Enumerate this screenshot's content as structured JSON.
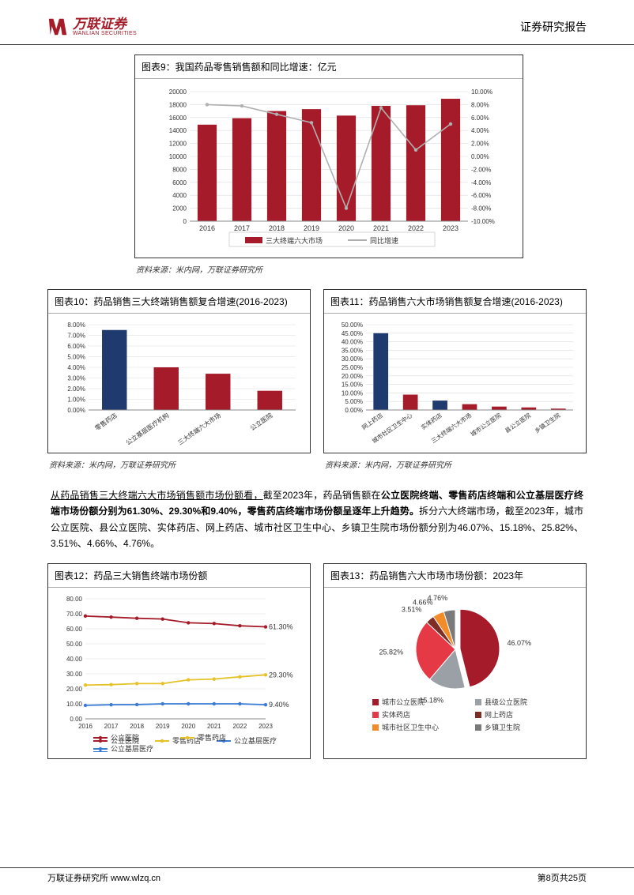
{
  "header": {
    "logo_cn": "万联证券",
    "logo_en": "WANLIAN SECURITIES",
    "right": "证券研究报告"
  },
  "chart9": {
    "title": "图表9：我国药品零售销售额和同比增速：亿元",
    "type": "bar+line",
    "categories": [
      "2016",
      "2017",
      "2018",
      "2019",
      "2020",
      "2021",
      "2022",
      "2023"
    ],
    "bar_values": [
      14900,
      15900,
      17000,
      17300,
      16300,
      17800,
      17900,
      18900
    ],
    "line_values": [
      8.0,
      7.8,
      6.5,
      5.2,
      -8.0,
      7.5,
      1.0,
      5.0
    ],
    "y1_ticks": [
      0,
      2000,
      4000,
      6000,
      8000,
      10000,
      12000,
      14000,
      16000,
      18000,
      20000
    ],
    "y2_ticks": [
      -10,
      -8,
      -6,
      -4,
      -2,
      0,
      2,
      4,
      6,
      8,
      10
    ],
    "y1_max": 20000,
    "y2_min": -10,
    "y2_max": 10,
    "bar_color": "#a61b29",
    "line_color": "#b0b0b0",
    "legend": [
      {
        "label": "三大终端六大市场",
        "type": "bar",
        "color": "#a61b29"
      },
      {
        "label": "同比增速",
        "type": "line",
        "color": "#b0b0b0"
      }
    ],
    "source": "资料来源：米内网，万联证券研究所"
  },
  "chart10": {
    "title": "图表10：药品销售三大终端销售额复合增速(2016-2023)",
    "type": "bar",
    "categories": [
      "零售药店",
      "公立基层医疗机构",
      "三大终端六大市场",
      "公立医院"
    ],
    "values": [
      7.5,
      4.0,
      3.4,
      1.8
    ],
    "colors": [
      "#1f3a6e",
      "#a61b29",
      "#a61b29",
      "#a61b29"
    ],
    "y_ticks": [
      0,
      1,
      2,
      3,
      4,
      5,
      6,
      7,
      8
    ],
    "y_max": 8,
    "source": "资料来源：米内网，万联证券研究所"
  },
  "chart11": {
    "title": "图表11：药品销售六大市场销售额复合增速(2016-2023)",
    "type": "bar",
    "categories": [
      "网上药店",
      "城市社区卫生中心",
      "实体药店",
      "三大终端六大市场",
      "城市公立医院",
      "县公立医院",
      "乡镇卫生院"
    ],
    "values": [
      45.0,
      9.0,
      5.5,
      3.4,
      2.0,
      1.5,
      0.8
    ],
    "colors": [
      "#1f3a6e",
      "#a61b29",
      "#1f3a6e",
      "#a61b29",
      "#a61b29",
      "#a61b29",
      "#a61b29"
    ],
    "y_ticks": [
      0,
      5,
      10,
      15,
      20,
      25,
      30,
      35,
      40,
      45,
      50
    ],
    "y_max": 50,
    "source": "资料来源：米内网，万联证券研究所"
  },
  "paragraph": {
    "line1": "从药品销售三大终端六大市场销售额市场份额看，",
    "line2a": "截至2023年，药品销售额在",
    "line2b": "公立医院终端、零售药店终端和公立基层医疗终端市场份额分别为61.30%、29.30%和9.40%，零售药店终端市场份额呈逐年上升趋势。",
    "line3": "拆分六大终端市场，截至2023年，城市公立医院、县公立医院、实体药店、网上药店、城市社区卫生中心、乡镇卫生院市场份额分别为46.07%、15.18%、25.82%、3.51%、4.66%、4.76%。"
  },
  "chart12": {
    "title": "图表12：药品三大销售终端市场份额",
    "type": "line",
    "categories": [
      "2016",
      "2017",
      "2018",
      "2019",
      "2020",
      "2021",
      "2022",
      "2023"
    ],
    "series": [
      {
        "name": "公立医院",
        "color": "#a61b29",
        "values": [
          68.5,
          67.8,
          67.0,
          66.5,
          64.0,
          63.5,
          62.0,
          61.3
        ],
        "end_label": "61.30%"
      },
      {
        "name": "零售药店",
        "color": "#e6c229",
        "values": [
          22.5,
          22.8,
          23.5,
          23.5,
          26.0,
          26.5,
          28.0,
          29.3
        ],
        "end_label": "29.30%"
      },
      {
        "name": "公立基层医疗",
        "color": "#3a7bd5",
        "values": [
          9.0,
          9.4,
          9.5,
          10.0,
          10.0,
          10.0,
          10.0,
          9.4
        ],
        "end_label": "9.40%"
      }
    ],
    "y_ticks": [
      0,
      10,
      20,
      30,
      40,
      50,
      60,
      70,
      80
    ],
    "y_max": 80
  },
  "chart13": {
    "title": "图表13：药品销售六大市场市场份额：2023年",
    "type": "pie",
    "slices": [
      {
        "label": "城市公立医院",
        "value": 46.07,
        "color": "#a61b29"
      },
      {
        "label": "县级公立医院",
        "value": 15.18,
        "color": "#9aa0a6"
      },
      {
        "label": "实体药店",
        "value": 25.82,
        "color": "#e63946"
      },
      {
        "label": "网上药店",
        "value": 3.51,
        "color": "#7b2d26"
      },
      {
        "label": "城市社区卫生中心",
        "value": 4.66,
        "color": "#f28c28"
      },
      {
        "label": "乡镇卫生院",
        "value": 4.76,
        "color": "#7a7a7a"
      }
    ],
    "legend_rows": [
      [
        {
          "label": "城市公立医院",
          "color": "#a61b29"
        },
        {
          "label": "县级公立医院",
          "color": "#9aa0a6"
        }
      ],
      [
        {
          "label": "实体药店",
          "color": "#e63946"
        },
        {
          "label": "网上药店",
          "color": "#7b2d26"
        }
      ],
      [
        {
          "label": "城市社区卫生中心",
          "color": "#f28c28"
        },
        {
          "label": "乡镇卫生院",
          "color": "#7a7a7a"
        }
      ]
    ]
  },
  "footer": {
    "left": "万联证券研究所 www.wlzq.cn",
    "right": "第8页共25页"
  },
  "colors": {
    "brand": "#a61b29",
    "navy": "#1f3a6e",
    "grid": "#cfcfcf",
    "text": "#000000"
  }
}
